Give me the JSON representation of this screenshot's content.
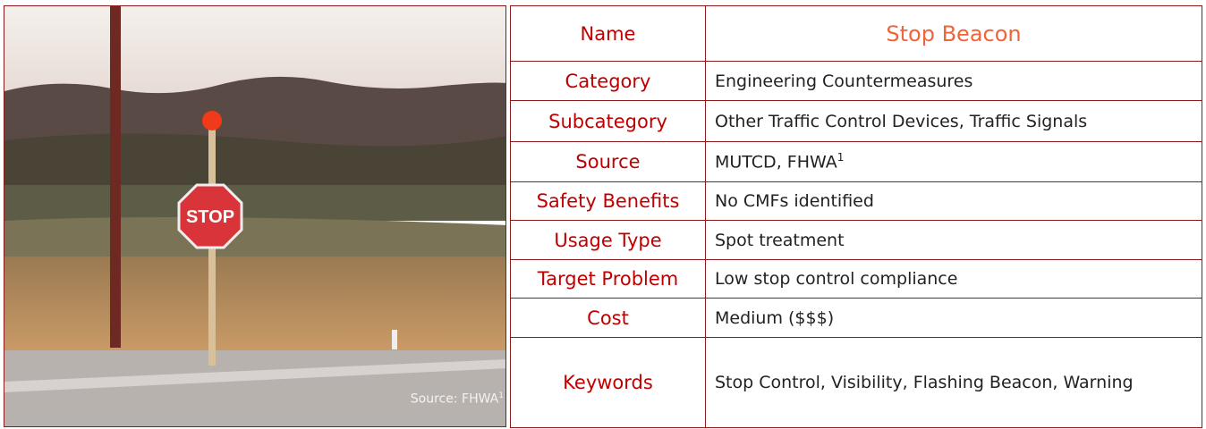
{
  "image": {
    "caption": "Source: FHWA",
    "caption_sup": "1"
  },
  "table": {
    "rows": [
      {
        "label": "Name",
        "value": "Stop Beacon"
      },
      {
        "label": "Category",
        "value": "Engineering Countermeasures"
      },
      {
        "label": "Subcategory",
        "value": "Other Traffic Control Devices, Traffic Signals"
      },
      {
        "label": "Source",
        "value": "MUTCD, FHWA",
        "sup": "1"
      },
      {
        "label": "Safety Benefits",
        "value": "No CMFs identified"
      },
      {
        "label": "Usage Type",
        "value": "Spot treatment"
      },
      {
        "label": "Target Problem",
        "value": "Low stop control compliance"
      },
      {
        "label": "Cost",
        "value": "Medium ($$$)"
      },
      {
        "label": "Keywords",
        "value": "Stop Control, Visibility, Flashing Beacon, Warning"
      }
    ]
  }
}
